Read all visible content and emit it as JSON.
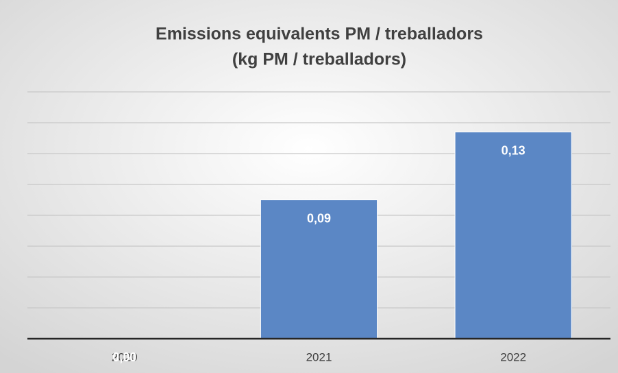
{
  "chart_data": {
    "type": "bar",
    "title": "Emissions equivalents PM / treballadors",
    "subtitle": "(kg PM / treballadors)",
    "categories": [
      "2020",
      "2021",
      "2022"
    ],
    "values": [
      0,
      0.09,
      0.134
    ],
    "value_labels": [
      "0,00",
      "0,09",
      "0,13"
    ],
    "color": "#5b87c5",
    "ylim": [
      0,
      0.16
    ],
    "yticks": [
      0,
      0.02,
      0.04,
      0.06,
      0.08,
      0.1,
      0.12,
      0.14,
      0.16
    ],
    "grid": true
  }
}
